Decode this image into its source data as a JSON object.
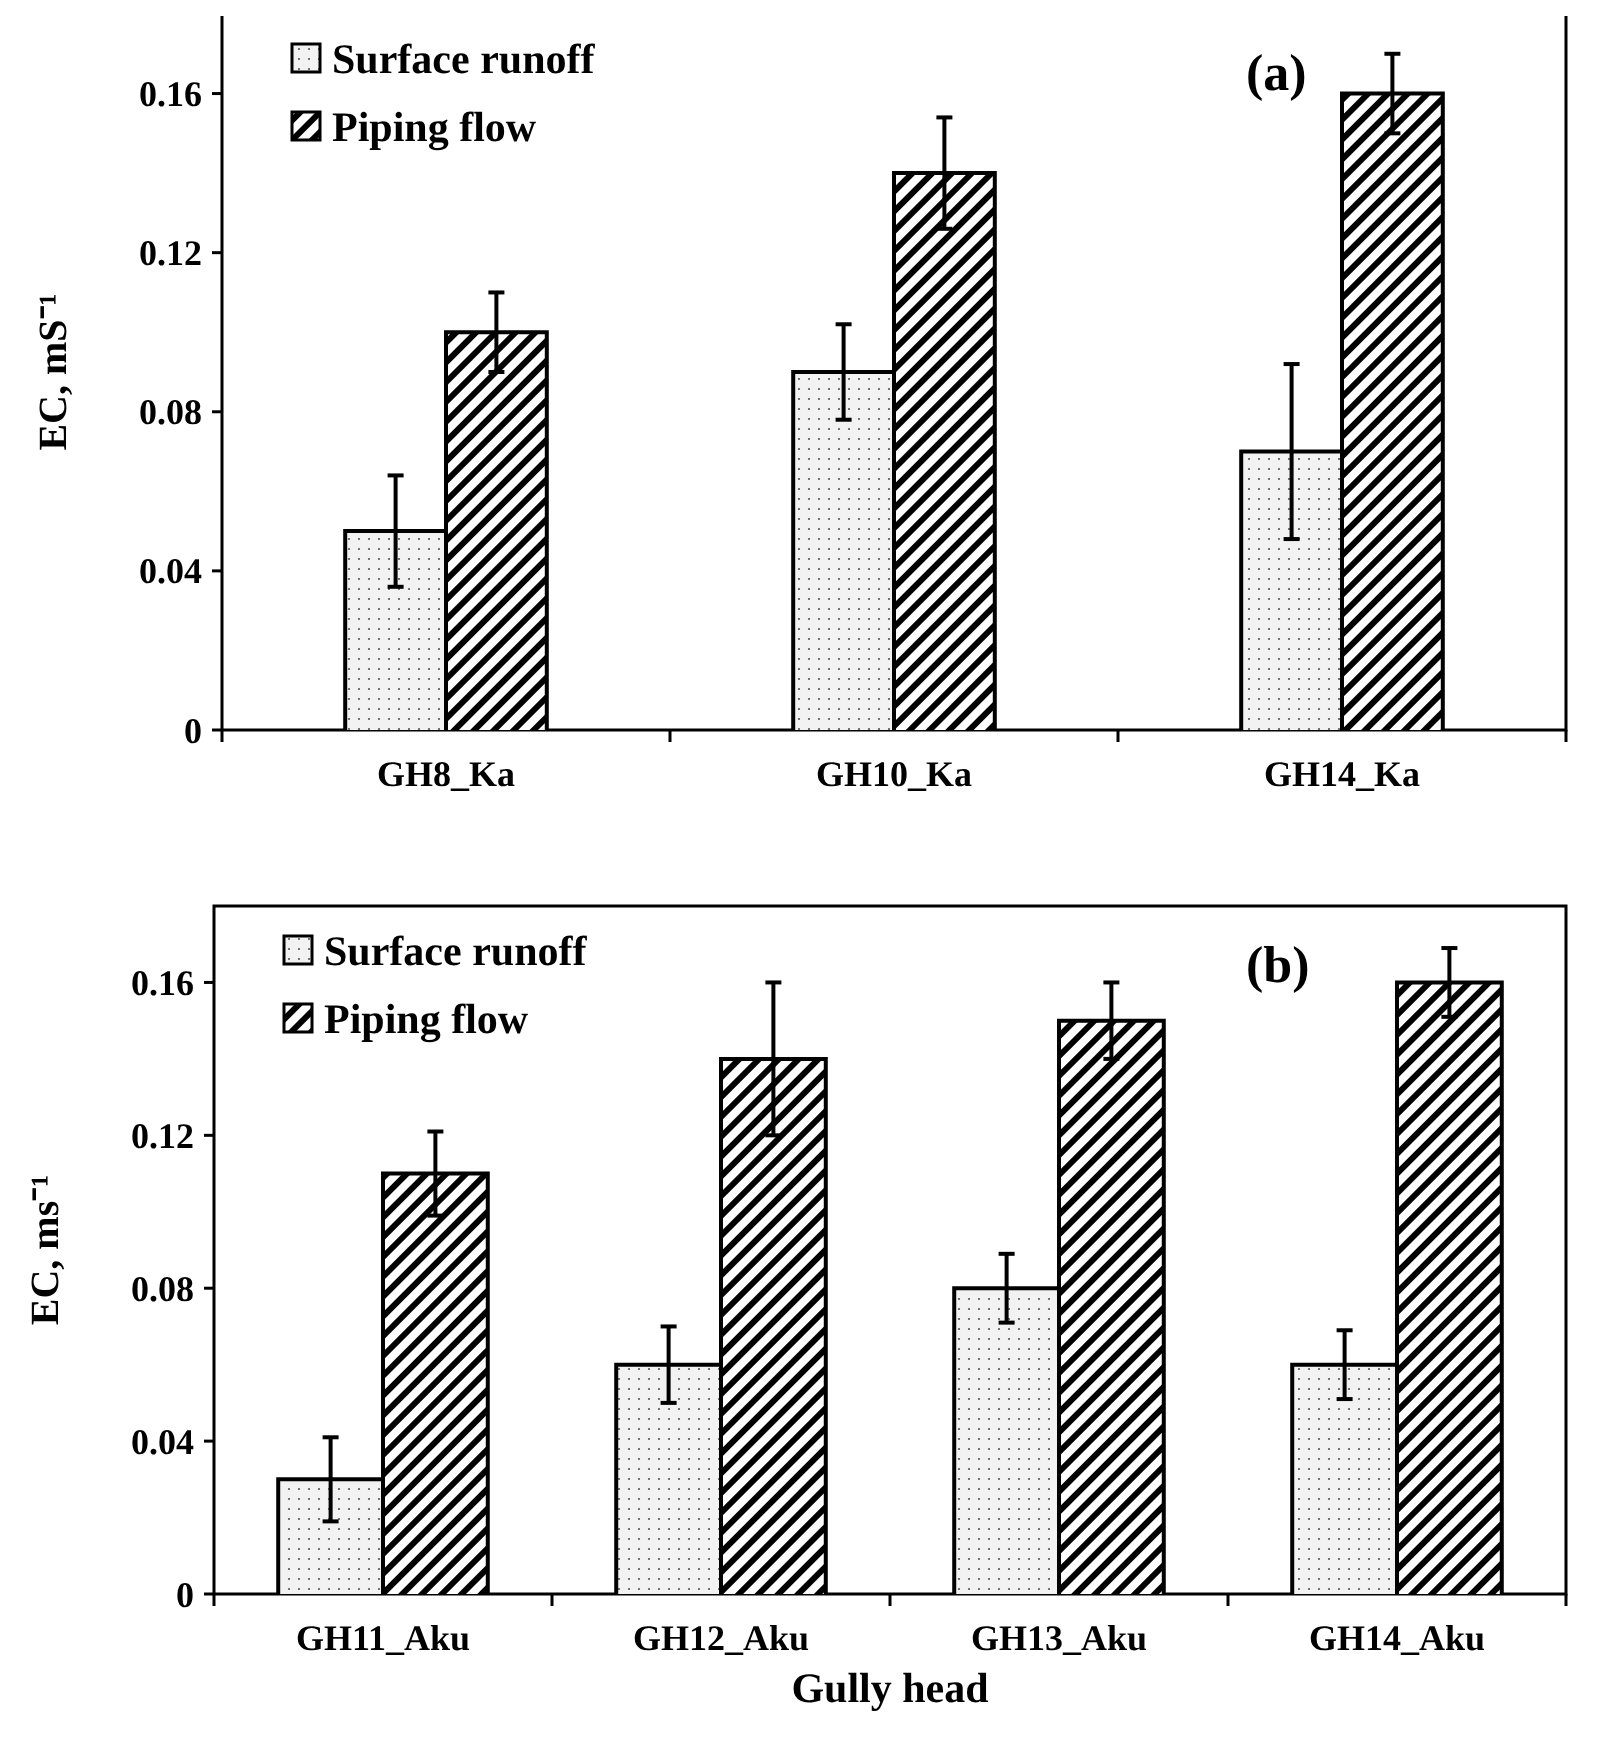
{
  "chart_data": [
    {
      "type": "bar",
      "ylabel": "EC, mS⁻¹",
      "categories": [
        "GH8_Ka",
        "GH10_Ka",
        "GH14_Ka"
      ],
      "series": [
        {
          "name": "Surface runoff",
          "color": "#f2f2f2",
          "values": [
            0.05,
            0.09,
            0.07
          ],
          "errors": [
            0.014,
            0.012,
            0.022
          ]
        },
        {
          "name": "Piping flow",
          "color": "#000000",
          "values": [
            0.1,
            0.14,
            0.16
          ],
          "errors": [
            0.01,
            0.014,
            0.01
          ]
        }
      ],
      "ylim": [
        0,
        0.18
      ],
      "yticks": [
        0,
        0.04,
        0.08,
        0.12,
        0.16
      ],
      "legend": "top left",
      "annotations": [
        "(a)"
      ]
    },
    {
      "type": "bar",
      "xlabel": "Gully head",
      "ylabel": "EC, ms⁻¹",
      "categories": [
        "GH11_Aku",
        "GH12_Aku",
        "GH13_Aku",
        "GH14_Aku"
      ],
      "series": [
        {
          "name": "Surface runoff",
          "color": "#f2f2f2",
          "values": [
            0.03,
            0.06,
            0.08,
            0.06
          ],
          "errors": [
            0.011,
            0.01,
            0.009,
            0.009
          ]
        },
        {
          "name": "Piping flow",
          "color": "#000000",
          "values": [
            0.11,
            0.14,
            0.15,
            0.16
          ],
          "errors": [
            0.011,
            0.02,
            0.01,
            0.009
          ]
        }
      ],
      "ylim": [
        0,
        0.18
      ],
      "yticks": [
        0,
        0.04,
        0.08,
        0.12,
        0.16
      ],
      "legend": "top left",
      "annotations": [
        "(b)"
      ]
    }
  ]
}
